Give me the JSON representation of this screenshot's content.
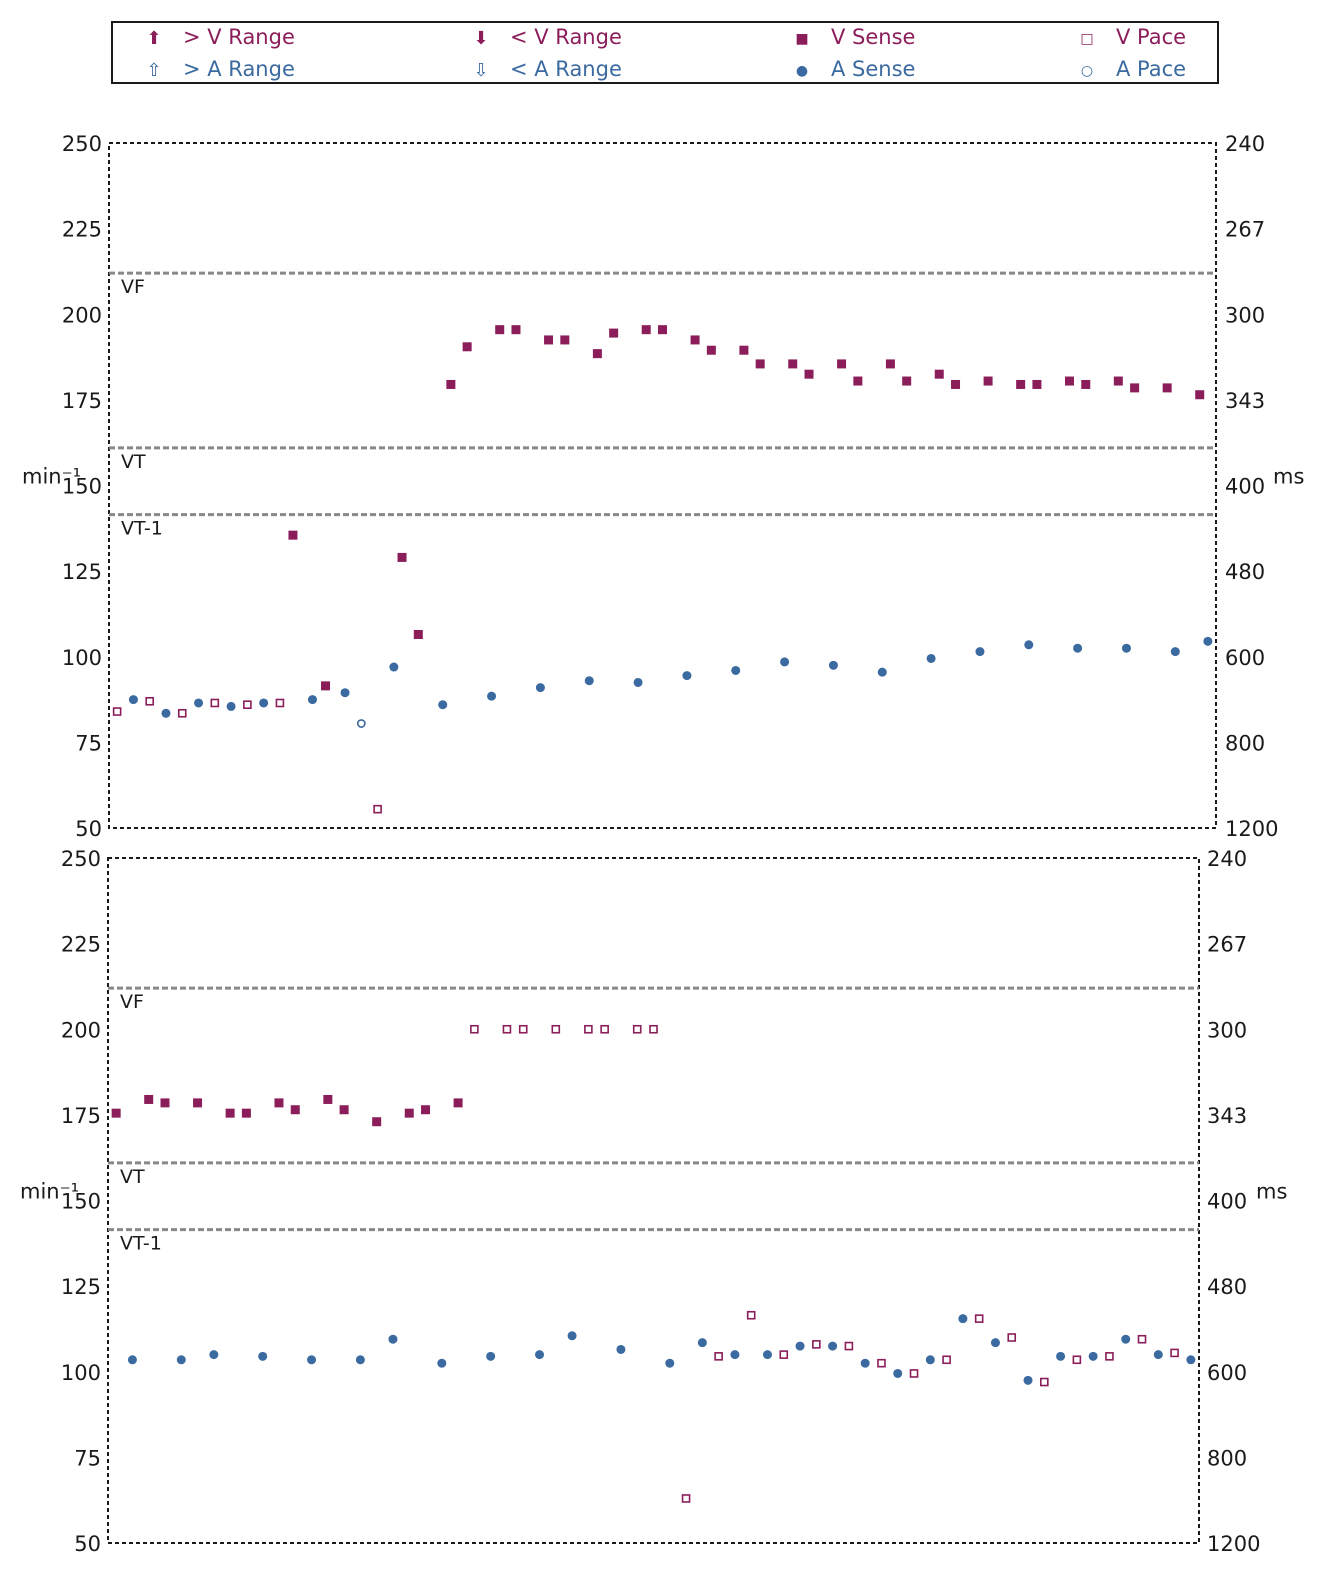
{
  "colors": {
    "v": "#8b1e5a",
    "a": "#3a6aa0",
    "axis": "#1a1a1a",
    "zone": "#888888"
  },
  "legend": [
    {
      "symbol": "arrow-up-filled",
      "label": "> V Range",
      "color": "#8b1e5a"
    },
    {
      "symbol": "arrow-down-filled",
      "label": "< V Range",
      "color": "#8b1e5a"
    },
    {
      "symbol": "filled-square",
      "label": "V Sense",
      "color": "#8b1e5a"
    },
    {
      "symbol": "open-square",
      "label": "V Pace",
      "color": "#8b1e5a"
    },
    {
      "symbol": "arrow-up-open",
      "label": "> A Range",
      "color": "#3a6aa0"
    },
    {
      "symbol": "arrow-down-open",
      "label": "< A Range",
      "color": "#3a6aa0"
    },
    {
      "symbol": "filled-circle",
      "label": "A Sense",
      "color": "#3a6aa0"
    },
    {
      "symbol": "open-circle",
      "label": "A Pace",
      "color": "#3a6aa0"
    }
  ],
  "chart_data": [
    {
      "type": "scatter",
      "ylabel": "min⁻¹",
      "y2label": "ms",
      "ylim": [
        50,
        250
      ],
      "yticks": [
        50,
        75,
        100,
        125,
        150,
        175,
        200,
        225,
        250
      ],
      "y2ticks": [
        "1200",
        "800",
        "600",
        "480",
        "400",
        "343",
        "300",
        "267",
        "240"
      ],
      "xlim": [
        0,
        68
      ],
      "grid": false,
      "zones": [
        {
          "label": "VF",
          "rate": 212
        },
        {
          "label": "VT",
          "rate": 161
        },
        {
          "label": "VT-1",
          "rate": 141.5
        }
      ],
      "series": [
        {
          "name": "V Sense",
          "marker": "filled-square",
          "points": [
            [
              11.3,
              135.5
            ],
            [
              13.3,
              91.5
            ],
            [
              18,
              129
            ],
            [
              19,
              106.5
            ],
            [
              21,
              179.5
            ],
            [
              22,
              190.5
            ],
            [
              24,
              195.5
            ],
            [
              25,
              195.5
            ],
            [
              27,
              192.5
            ],
            [
              28,
              192.5
            ],
            [
              30,
              188.5
            ],
            [
              31,
              194.5
            ],
            [
              33,
              195.5
            ],
            [
              34,
              195.5
            ],
            [
              36,
              192.5
            ],
            [
              37,
              189.5
            ],
            [
              39,
              189.5
            ],
            [
              40,
              185.5
            ],
            [
              42,
              185.5
            ],
            [
              43,
              182.5
            ],
            [
              45,
              185.5
            ],
            [
              46,
              180.5
            ],
            [
              48,
              185.5
            ],
            [
              49,
              180.5
            ],
            [
              51,
              182.5
            ],
            [
              52,
              179.5
            ],
            [
              54,
              180.5
            ],
            [
              56,
              179.5
            ],
            [
              57,
              179.5
            ],
            [
              59,
              180.5
            ],
            [
              60,
              179.5
            ],
            [
              62,
              180.5
            ],
            [
              63,
              178.5
            ],
            [
              65,
              178.5
            ],
            [
              67,
              176.5
            ]
          ]
        },
        {
          "name": "V Pace",
          "marker": "open-square",
          "points": [
            [
              0.5,
              84
            ],
            [
              2.5,
              87
            ],
            [
              4.5,
              83.5
            ],
            [
              6.5,
              86.5
            ],
            [
              8.5,
              86
            ],
            [
              10.5,
              86.5
            ],
            [
              16.5,
              55.5
            ]
          ]
        },
        {
          "name": "A Sense",
          "marker": "filled-circle",
          "points": [
            [
              1.5,
              87.5
            ],
            [
              3.5,
              83.5
            ],
            [
              5.5,
              86.5
            ],
            [
              7.5,
              85.5
            ],
            [
              9.5,
              86.5
            ],
            [
              12.5,
              87.5
            ],
            [
              14.5,
              89.5
            ],
            [
              17.5,
              97
            ],
            [
              20.5,
              86
            ],
            [
              23.5,
              88.5
            ],
            [
              26.5,
              91
            ],
            [
              29.5,
              93
            ],
            [
              32.5,
              92.5
            ],
            [
              35.5,
              94.5
            ],
            [
              38.5,
              96
            ],
            [
              41.5,
              98.5
            ],
            [
              44.5,
              97.5
            ],
            [
              47.5,
              95.5
            ],
            [
              50.5,
              99.5
            ],
            [
              53.5,
              101.5
            ],
            [
              56.5,
              103.5
            ],
            [
              59.5,
              102.5
            ],
            [
              62.5,
              102.5
            ],
            [
              65.5,
              101.5
            ],
            [
              67.5,
              104.5
            ]
          ]
        },
        {
          "name": "A Pace",
          "marker": "open-circle",
          "points": [
            [
              15.5,
              80.5
            ]
          ]
        }
      ]
    },
    {
      "type": "scatter",
      "ylabel": "min⁻¹",
      "y2label": "ms",
      "ylim": [
        50,
        250
      ],
      "yticks": [
        50,
        75,
        100,
        125,
        150,
        175,
        200,
        225,
        250
      ],
      "y2ticks": [
        "1200",
        "800",
        "600",
        "480",
        "400",
        "343",
        "300",
        "267",
        "240"
      ],
      "xlim": [
        0,
        67
      ],
      "grid": false,
      "zones": [
        {
          "label": "VF",
          "rate": 212
        },
        {
          "label": "VT",
          "rate": 161
        },
        {
          "label": "VT-1",
          "rate": 141.5
        }
      ],
      "series": [
        {
          "name": "V Sense",
          "marker": "filled-square",
          "points": [
            [
              0.5,
              175.5
            ],
            [
              2.5,
              179.5
            ],
            [
              3.5,
              178.5
            ],
            [
              5.5,
              178.5
            ],
            [
              7.5,
              175.5
            ],
            [
              8.5,
              175.5
            ],
            [
              10.5,
              178.5
            ],
            [
              11.5,
              176.5
            ],
            [
              13.5,
              179.5
            ],
            [
              14.5,
              176.5
            ],
            [
              16.5,
              173
            ],
            [
              18.5,
              175.5
            ],
            [
              19.5,
              176.5
            ],
            [
              21.5,
              178.5
            ]
          ]
        },
        {
          "name": "V Pace",
          "marker": "open-square",
          "points": [
            [
              22.5,
              200
            ],
            [
              24.5,
              200
            ],
            [
              25.5,
              200
            ],
            [
              27.5,
              200
            ],
            [
              29.5,
              200
            ],
            [
              30.5,
              200
            ],
            [
              32.5,
              200
            ],
            [
              33.5,
              200
            ],
            [
              35.5,
              63
            ],
            [
              37.5,
              104.5
            ],
            [
              39.5,
              116.5
            ],
            [
              41.5,
              105
            ],
            [
              43.5,
              108
            ],
            [
              45.5,
              107.5
            ],
            [
              47.5,
              102.5
            ],
            [
              49.5,
              99.5
            ],
            [
              51.5,
              103.5
            ],
            [
              53.5,
              115.5
            ],
            [
              55.5,
              110
            ],
            [
              57.5,
              97
            ],
            [
              59.5,
              103.5
            ],
            [
              61.5,
              104.5
            ],
            [
              63.5,
              109.5
            ],
            [
              65.5,
              105.5
            ]
          ]
        },
        {
          "name": "A Sense",
          "marker": "filled-circle",
          "points": [
            [
              1.5,
              103.5
            ],
            [
              4.5,
              103.5
            ],
            [
              6.5,
              105
            ],
            [
              9.5,
              104.5
            ],
            [
              12.5,
              103.5
            ],
            [
              15.5,
              103.5
            ],
            [
              17.5,
              109.5
            ],
            [
              20.5,
              102.5
            ],
            [
              23.5,
              104.5
            ],
            [
              26.5,
              105
            ],
            [
              28.5,
              110.5
            ],
            [
              31.5,
              106.5
            ],
            [
              34.5,
              102.5
            ],
            [
              36.5,
              108.5
            ],
            [
              38.5,
              105
            ],
            [
              40.5,
              105
            ],
            [
              42.5,
              107.5
            ],
            [
              44.5,
              107.5
            ],
            [
              46.5,
              102.5
            ],
            [
              48.5,
              99.5
            ],
            [
              50.5,
              103.5
            ],
            [
              52.5,
              115.5
            ],
            [
              54.5,
              108.5
            ],
            [
              56.5,
              97.5
            ],
            [
              58.5,
              104.5
            ],
            [
              60.5,
              104.5
            ],
            [
              62.5,
              109.5
            ],
            [
              64.5,
              105
            ],
            [
              66.5,
              103.5
            ]
          ]
        }
      ]
    }
  ]
}
